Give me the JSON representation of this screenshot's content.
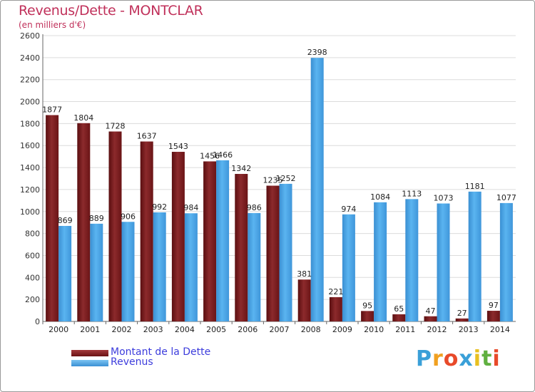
{
  "header": {
    "title": "Revenus/Dette - MONTCLAR",
    "subtitle": "(en milliers d'€)"
  },
  "chart_data": {
    "type": "bar",
    "title": "Revenus/Dette - MONTCLAR",
    "ylabel": "(en milliers d'€)",
    "xlabel": "",
    "ylim": [
      0,
      2600
    ],
    "yticks": [
      0,
      200,
      400,
      600,
      800,
      1000,
      1200,
      1400,
      1600,
      1800,
      2000,
      2200,
      2400,
      2600
    ],
    "grid": true,
    "categories": [
      "2000",
      "2001",
      "2002",
      "2003",
      "2004",
      "2005",
      "2006",
      "2007",
      "2008",
      "2009",
      "2010",
      "2011",
      "2012",
      "2013",
      "2014"
    ],
    "series": [
      {
        "name": "Montant de la Dette",
        "color": "#7a1a1c",
        "values": [
          1877,
          1804,
          1728,
          1637,
          1543,
          1456,
          1342,
          1235,
          381,
          221,
          95,
          65,
          47,
          27,
          97
        ]
      },
      {
        "name": "Revenus",
        "color": "#4aa6e8",
        "values": [
          869,
          889,
          906,
          992,
          984,
          1466,
          986,
          1252,
          2398,
          974,
          1084,
          1113,
          1073,
          1181,
          1077
        ]
      }
    ],
    "legend_position": "bottom-left"
  },
  "legend": {
    "items": [
      {
        "label": "Montant de la Dette",
        "color": "#7a1a1c"
      },
      {
        "label": "Revenus",
        "color": "#4aa6e8"
      }
    ]
  },
  "brand": {
    "letters": [
      "P",
      "r",
      "o",
      "x",
      "i",
      "t",
      "i"
    ],
    "colors": [
      "#3aa0d8",
      "#f0a020",
      "#e84a2a",
      "#3aa0d8",
      "#e8c020",
      "#60b040",
      "#e84a2a"
    ]
  }
}
